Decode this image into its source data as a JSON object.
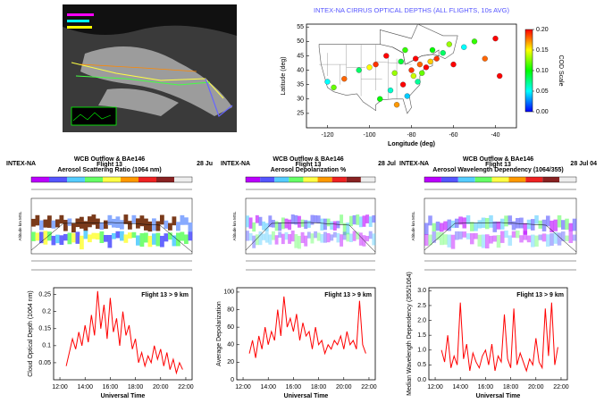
{
  "chart_data": [
    {
      "type": "scatter",
      "title": "INTEX-NA CIRRUS OPTICAL DEPTHS (ALL FLIGHTS, 10s AVG)",
      "xlabel": "Longitude (deg)",
      "ylabel": "Latitude (deg)",
      "x": [
        -120,
        -117,
        -112,
        -105,
        -100,
        -97,
        -95,
        -92,
        -90,
        -88,
        -87,
        -85,
        -84,
        -83,
        -82,
        -80,
        -79,
        -78,
        -77,
        -76,
        -75,
        -73,
        -71,
        -70,
        -68,
        -65,
        -62,
        -60,
        -55,
        -50,
        -45,
        -40,
        -38
      ],
      "y": [
        36,
        34,
        37,
        40,
        41,
        42,
        30,
        45,
        33,
        39,
        28,
        43,
        35,
        47,
        31,
        40,
        38,
        44,
        36,
        42,
        39,
        41,
        43,
        47,
        44,
        46,
        49,
        42,
        48,
        50,
        44,
        51,
        38
      ],
      "values": [
        0.05,
        0.12,
        0.18,
        0.08,
        0.15,
        0.19,
        0.1,
        0.2,
        0.06,
        0.13,
        0.17,
        0.09,
        0.2,
        0.11,
        0.04,
        0.19,
        0.14,
        0.2,
        0.07,
        0.18,
        0.12,
        0.2,
        0.16,
        0.1,
        0.19,
        0.08,
        0.13,
        0.2,
        0.05,
        0.11,
        0.18,
        0.2,
        0.2
      ],
      "xlim": [
        -130,
        -30
      ],
      "xticks": [
        -120,
        -100,
        -80,
        -60,
        -40
      ],
      "ylim": [
        20,
        56
      ],
      "yticks": [
        25,
        30,
        35,
        40,
        45,
        50,
        55
      ],
      "colorbar_label": "COD Scale",
      "clim": [
        0,
        0.2
      ],
      "cticks": [
        {
          "value": 0,
          "label": "0.00"
        },
        {
          "value": 0.05,
          "label": "0.05"
        },
        {
          "value": 0.1,
          "label": "0.10"
        },
        {
          "value": 0.15,
          "label": "0.15"
        },
        {
          "value": 0.2,
          "label": "0.20"
        }
      ],
      "colorscale": [
        "#0000ff",
        "#00ffff",
        "#00ff00",
        "#ffff00",
        "#ff0000"
      ]
    },
    {
      "type": "line",
      "ylabel": "Cloud Optical Depth (1064 nm)",
      "xlabel": "Universal Time",
      "annotation": "Flight 13 > 9 km",
      "color": "#ff0000",
      "x": [
        12.5,
        12.75,
        13,
        13.25,
        13.5,
        13.75,
        14,
        14.25,
        14.5,
        14.75,
        15,
        15.25,
        15.5,
        15.75,
        16,
        16.25,
        16.5,
        16.75,
        17,
        17.25,
        17.5,
        17.75,
        18,
        18.25,
        18.5,
        18.75,
        19,
        19.25,
        19.5,
        19.75,
        20,
        20.25,
        20.5,
        20.75,
        21,
        21.25,
        21.5,
        21.75
      ],
      "values": [
        0.04,
        0.08,
        0.12,
        0.09,
        0.14,
        0.1,
        0.16,
        0.11,
        0.19,
        0.13,
        0.26,
        0.15,
        0.22,
        0.12,
        0.24,
        0.14,
        0.18,
        0.1,
        0.2,
        0.13,
        0.16,
        0.09,
        0.12,
        0.05,
        0.08,
        0.04,
        0.07,
        0.05,
        0.1,
        0.06,
        0.09,
        0.04,
        0.08,
        0.03,
        0.06,
        0.02,
        0.05,
        0.03
      ],
      "xlim": [
        11.5,
        22.5
      ],
      "xticks": [
        {
          "value": 12,
          "label": "12:00"
        },
        {
          "value": 14,
          "label": "14:00"
        },
        {
          "value": 16,
          "label": "16:00"
        },
        {
          "value": 18,
          "label": "18:00"
        },
        {
          "value": 20,
          "label": "20:00"
        },
        {
          "value": 22,
          "label": "22:00"
        }
      ],
      "ylim": [
        0,
        0.27
      ],
      "yticks": [
        0.05,
        0.1,
        0.15,
        0.2,
        0.25
      ]
    },
    {
      "type": "line",
      "ylabel": "Average Depolarization",
      "xlabel": "Universal Time",
      "annotation": "Flight 13 > 9 km",
      "color": "#ff0000",
      "x": [
        12.5,
        12.75,
        13,
        13.25,
        13.5,
        13.75,
        14,
        14.25,
        14.5,
        14.75,
        15,
        15.25,
        15.5,
        15.75,
        16,
        16.25,
        16.5,
        16.75,
        17,
        17.25,
        17.5,
        17.75,
        18,
        18.25,
        18.5,
        18.75,
        19,
        19.25,
        19.5,
        19.75,
        20,
        20.25,
        20.5,
        20.75,
        21,
        21.25,
        21.5,
        21.75
      ],
      "values": [
        30,
        45,
        25,
        50,
        35,
        60,
        40,
        55,
        45,
        80,
        50,
        95,
        60,
        70,
        55,
        75,
        45,
        65,
        50,
        55,
        35,
        60,
        40,
        45,
        30,
        40,
        35,
        45,
        40,
        50,
        35,
        55,
        40,
        45,
        35,
        90,
        40,
        30
      ],
      "xlim": [
        11.5,
        22.5
      ],
      "xticks": [
        {
          "value": 12,
          "label": "12:00"
        },
        {
          "value": 14,
          "label": "14:00"
        },
        {
          "value": 16,
          "label": "16:00"
        },
        {
          "value": 18,
          "label": "18:00"
        },
        {
          "value": 20,
          "label": "20:00"
        },
        {
          "value": 22,
          "label": "22:00"
        }
      ],
      "ylim": [
        0,
        105
      ],
      "yticks": [
        0,
        20,
        40,
        60,
        80,
        100
      ]
    },
    {
      "type": "line",
      "ylabel": "Median Wavelength Dependency (355/1064)",
      "xlabel": "Universal Time",
      "annotation": "Flight 13 > 9 km",
      "color": "#ff0000",
      "x": [
        12.5,
        12.75,
        13,
        13.25,
        13.5,
        13.75,
        14,
        14.25,
        14.5,
        14.75,
        15,
        15.25,
        15.5,
        15.75,
        16,
        16.25,
        16.5,
        16.75,
        17,
        17.25,
        17.5,
        17.75,
        18,
        18.25,
        18.5,
        18.75,
        19,
        19.25,
        19.5,
        19.75,
        20,
        20.25,
        20.5,
        20.75,
        21,
        21.25,
        21.5,
        21.75
      ],
      "values": [
        1.0,
        0.6,
        1.5,
        0.4,
        0.8,
        0.5,
        2.6,
        0.7,
        1.2,
        0.3,
        0.9,
        0.6,
        0.4,
        0.8,
        1.0,
        0.5,
        1.2,
        0.3,
        0.8,
        0.6,
        2.2,
        0.7,
        0.4,
        2.4,
        0.5,
        0.9,
        0.6,
        0.3,
        0.7,
        0.5,
        1.4,
        0.6,
        0.4,
        2.4,
        0.8,
        2.6,
        0.5,
        1.1
      ],
      "xlim": [
        11.5,
        22.5
      ],
      "xticks": [
        {
          "value": 12,
          "label": "12:00"
        },
        {
          "value": 14,
          "label": "14:00"
        },
        {
          "value": 16,
          "label": "16:00"
        },
        {
          "value": 18,
          "label": "18:00"
        },
        {
          "value": 20,
          "label": "20:00"
        },
        {
          "value": 22,
          "label": "22:00"
        }
      ],
      "ylim": [
        0,
        3.1
      ],
      "yticks": [
        {
          "value": 0,
          "label": "0.0"
        },
        {
          "value": 0.5,
          "label": "0.5"
        },
        {
          "value": 1,
          "label": "1.0"
        },
        {
          "value": 1.5,
          "label": "1.5"
        },
        {
          "value": 2,
          "label": "2.0"
        },
        {
          "value": 2.5,
          "label": "2.5"
        },
        {
          "value": 3,
          "label": "3.0"
        }
      ]
    }
  ],
  "panels": [
    {
      "title": "WCB Outflow & BAe146",
      "subtitle": "Flight 13",
      "variable": "Aerosol Scattering Ratio (1064 nm)",
      "left": "INTEX-NA",
      "right": "28 Ju",
      "ylabel": "Altitude km MSL"
    },
    {
      "title": "WCB Outflow & BAe146",
      "subtitle": "Flight 13",
      "variable": "Aerosol Depolarization %",
      "left": "INTEX-NA",
      "right": "28 Jul",
      "ylabel": "Altitude km MSL"
    },
    {
      "title": "WCB Outflow & BAe146",
      "subtitle": "Flight 13",
      "variable": "Aerosol Wavelength Dependency (1064/355)",
      "left": "INTEX-NA",
      "right": "28 Jul 04",
      "ylabel": "Altitude km MSL"
    }
  ]
}
